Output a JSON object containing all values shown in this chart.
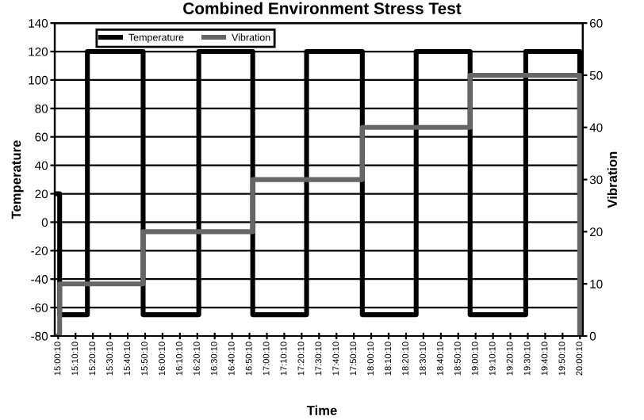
{
  "chart_data": {
    "type": "step",
    "title": "Combined Environment Stress Test",
    "xlabel": "Time",
    "ylabel": "Temperature",
    "y2label": "Vibration",
    "xlim": [
      14.97,
      20.03
    ],
    "ylim": [
      -80,
      140
    ],
    "yticks": [
      -80,
      -60,
      -40,
      -20,
      0,
      20,
      40,
      60,
      80,
      100,
      120,
      140
    ],
    "y2lim": [
      0,
      60
    ],
    "y2ticks": [
      0,
      10,
      20,
      30,
      40,
      50,
      60
    ],
    "xticks": [
      {
        "value": 15.0028,
        "label": "15:00:10"
      },
      {
        "value": 15.1694,
        "label": "15:10:10"
      },
      {
        "value": 15.3361,
        "label": "15:20:10"
      },
      {
        "value": 15.5028,
        "label": "15:30:10"
      },
      {
        "value": 15.6694,
        "label": "15:40:10"
      },
      {
        "value": 15.8361,
        "label": "15:50:10"
      },
      {
        "value": 16.0028,
        "label": "16:00:10"
      },
      {
        "value": 16.1694,
        "label": "16:10:10"
      },
      {
        "value": 16.3361,
        "label": "16:20:10"
      },
      {
        "value": 16.5028,
        "label": "16:30:10"
      },
      {
        "value": 16.6694,
        "label": "16:40:10"
      },
      {
        "value": 16.8361,
        "label": "16:50:10"
      },
      {
        "value": 17.0028,
        "label": "17:00:10"
      },
      {
        "value": 17.1694,
        "label": "17:10:10"
      },
      {
        "value": 17.3361,
        "label": "17:20:10"
      },
      {
        "value": 17.5028,
        "label": "17:30:10"
      },
      {
        "value": 17.6694,
        "label": "17:40:10"
      },
      {
        "value": 17.8361,
        "label": "17:50:10"
      },
      {
        "value": 18.0028,
        "label": "18:00:10"
      },
      {
        "value": 18.1694,
        "label": "18:10:10"
      },
      {
        "value": 18.3361,
        "label": "18:20:10"
      },
      {
        "value": 18.5028,
        "label": "18:30:10"
      },
      {
        "value": 18.6694,
        "label": "18:40:10"
      },
      {
        "value": 18.8361,
        "label": "18:50:10"
      },
      {
        "value": 19.0028,
        "label": "19:00:10"
      },
      {
        "value": 19.1694,
        "label": "19:10:10"
      },
      {
        "value": 19.3361,
        "label": "19:20:10"
      },
      {
        "value": 19.5028,
        "label": "19:30:10"
      },
      {
        "value": 19.6694,
        "label": "19:40:10"
      },
      {
        "value": 19.8361,
        "label": "19:50:10"
      },
      {
        "value": 20.0028,
        "label": "20:00:10"
      }
    ],
    "grid": "y",
    "legend": "top left",
    "series": [
      {
        "name": "Temperature",
        "color": "#000000",
        "x": [
          15.0,
          15.017,
          15.283,
          15.817,
          16.35,
          16.867,
          17.383,
          17.917,
          18.433,
          18.95,
          19.483,
          20.0
        ],
        "values": [
          20,
          -65,
          120,
          -65,
          120,
          -65,
          120,
          -65,
          120,
          -65,
          120,
          20
        ]
      },
      {
        "name": "Vibration",
        "color": "#666666",
        "axis": "y2",
        "x": [
          15.0,
          15.017,
          15.817,
          16.867,
          17.917,
          18.95,
          20.0
        ],
        "values": [
          0,
          10,
          20,
          30,
          40,
          50,
          0
        ]
      }
    ]
  }
}
